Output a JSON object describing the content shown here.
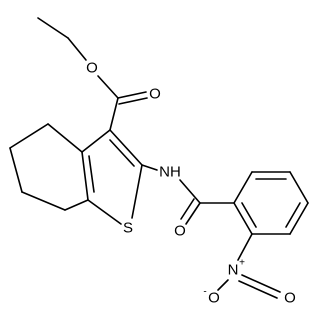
{
  "atoms": [
    {
      "label": "O"
    },
    {
      "label": "O"
    },
    {
      "label": "NH"
    },
    {
      "label": "S"
    },
    {
      "label": "O"
    },
    {
      "label": "N",
      "charge": "+"
    },
    {
      "label": "O",
      "charge": "-"
    },
    {
      "label": "O"
    }
  ]
}
